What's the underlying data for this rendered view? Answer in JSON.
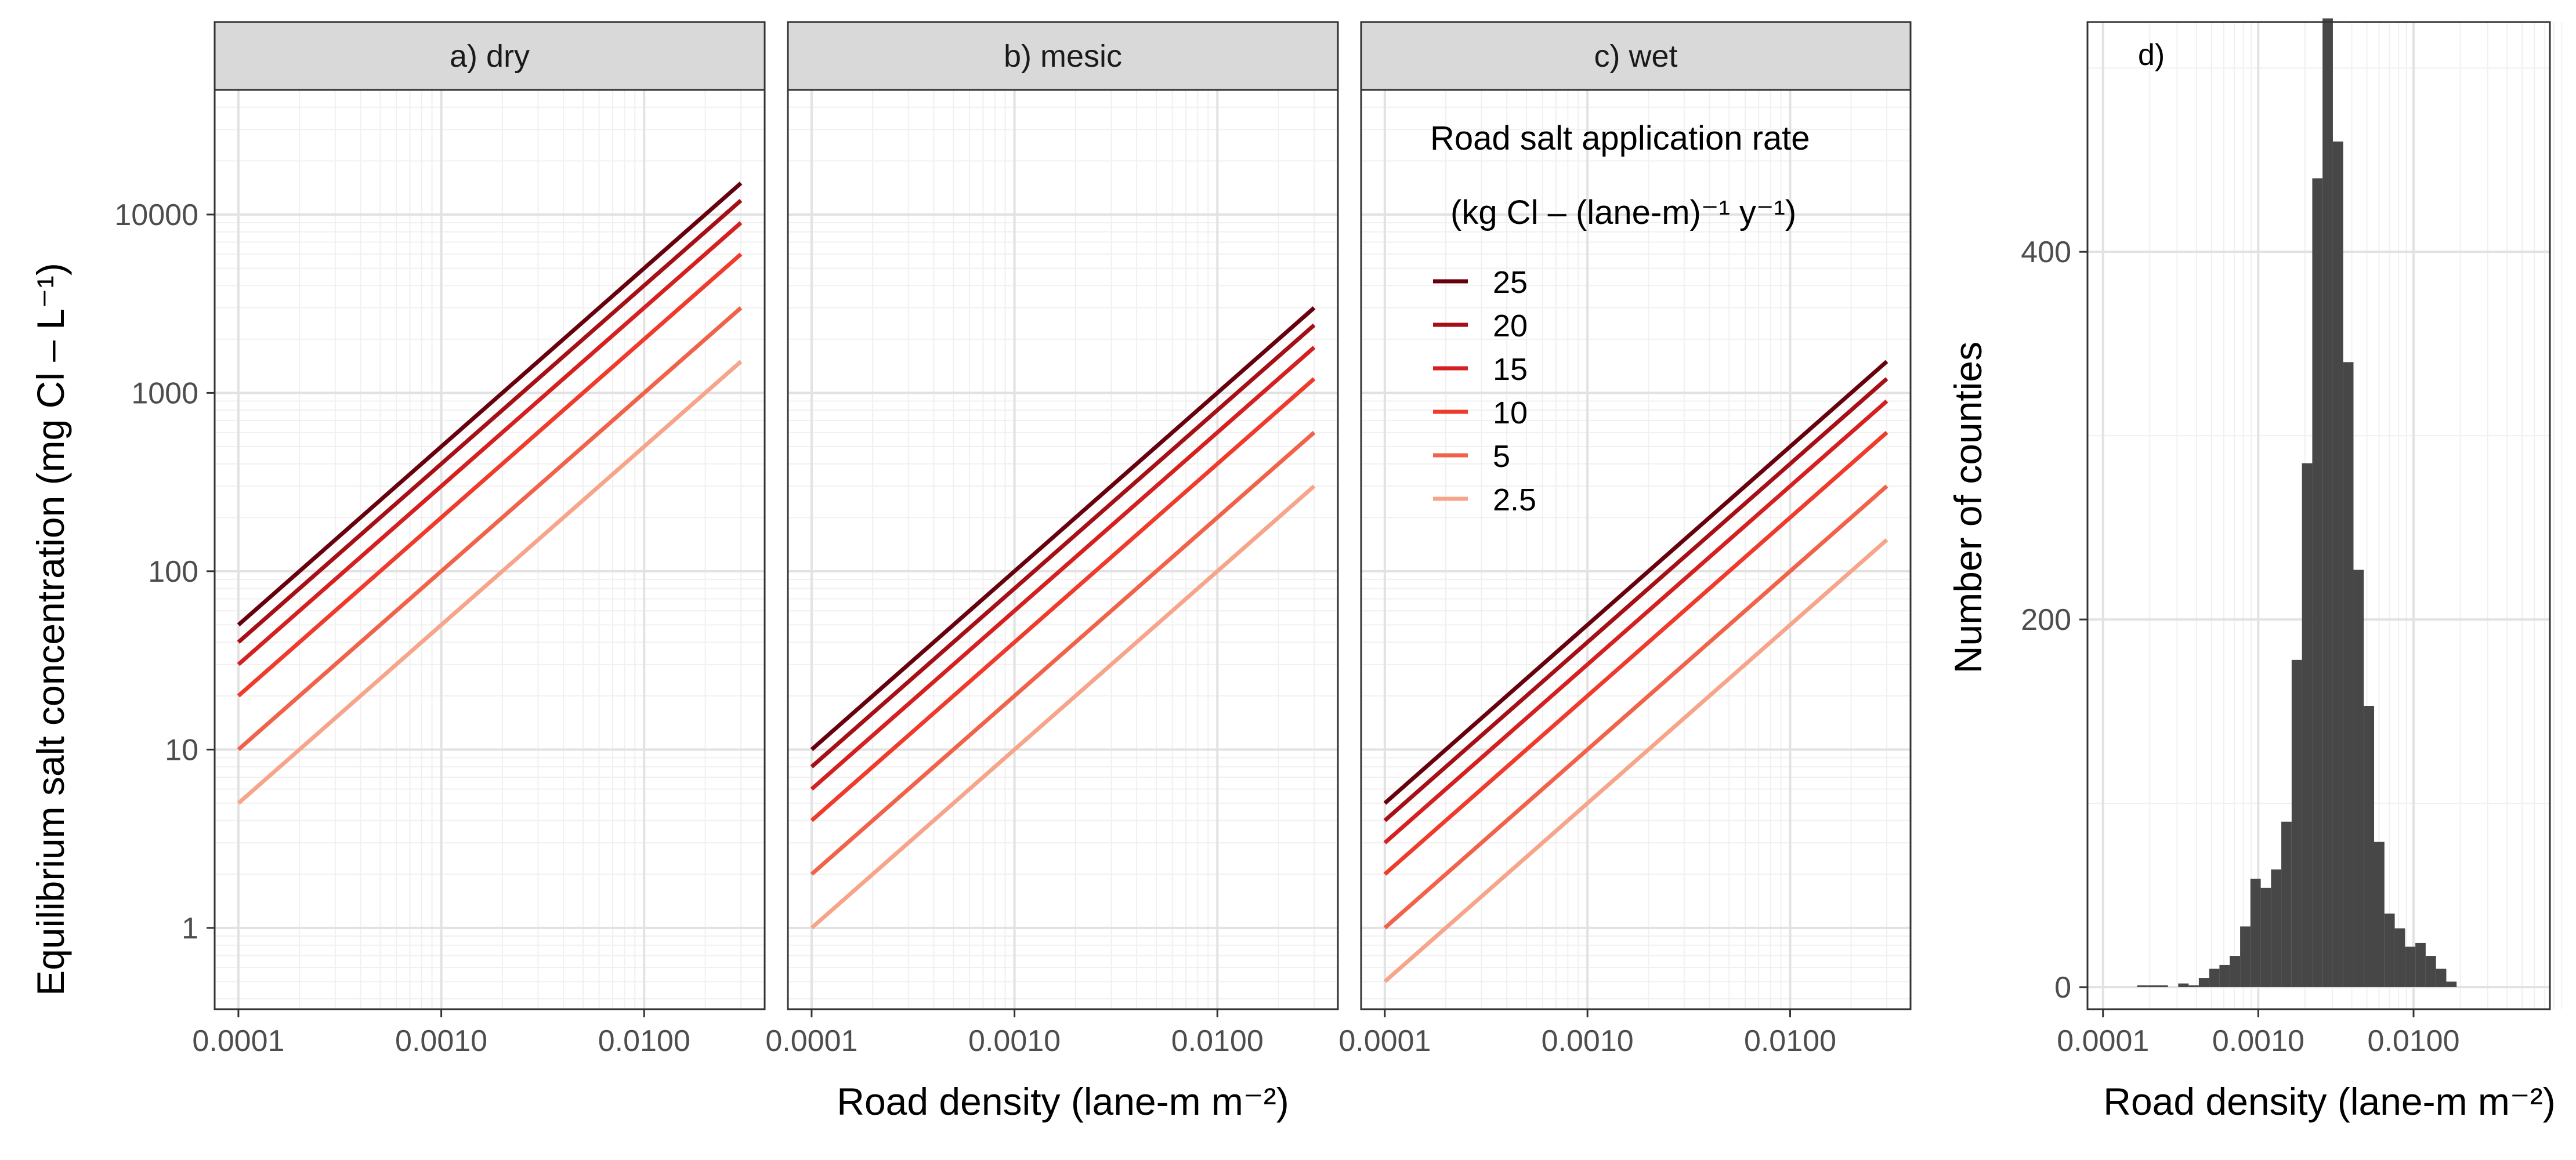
{
  "chart_data": [
    {
      "panel": "a",
      "type": "line",
      "strip_label": "a) dry",
      "xlabel": "",
      "ylabel": "Equilibrium salt concentration (mg Cl – L⁻¹)",
      "x_scale": "log10",
      "y_scale": "log10",
      "xlim": [
        0.0001,
        0.03
      ],
      "ylim": [
        0.35,
        50000
      ],
      "x_ticks": [
        0.0001,
        0.001,
        0.01
      ],
      "x_tick_labels": [
        "0.0001",
        "0.0010",
        "0.0100"
      ],
      "y_ticks": [
        1,
        10,
        100,
        1000,
        10000
      ],
      "y_tick_labels": [
        "1",
        "10",
        "100",
        "1000",
        "10000"
      ],
      "grid": true,
      "coefficient": 200000,
      "series": [
        {
          "name": "25",
          "color": "#67000d",
          "x": [
            0.0001,
            0.03
          ],
          "y": [
            50,
            15000
          ]
        },
        {
          "name": "20",
          "color": "#a50f15",
          "x": [
            0.0001,
            0.03
          ],
          "y": [
            40,
            12000
          ]
        },
        {
          "name": "15",
          "color": "#d42020",
          "x": [
            0.0001,
            0.03
          ],
          "y": [
            30,
            9000
          ]
        },
        {
          "name": "10",
          "color": "#ef3b2c",
          "x": [
            0.0001,
            0.03
          ],
          "y": [
            20,
            6000
          ]
        },
        {
          "name": "5",
          "color": "#f0634a",
          "x": [
            0.0001,
            0.03
          ],
          "y": [
            10,
            3000
          ]
        },
        {
          "name": "2.5",
          "color": "#f6a58a",
          "x": [
            0.0001,
            0.03
          ],
          "y": [
            5,
            1500
          ]
        }
      ]
    },
    {
      "panel": "b",
      "type": "line",
      "strip_label": "b) mesic",
      "xlabel": "Road density (lane-m m⁻²)",
      "x_scale": "log10",
      "y_scale": "log10",
      "xlim": [
        0.0001,
        0.03
      ],
      "ylim": [
        0.35,
        50000
      ],
      "x_ticks": [
        0.0001,
        0.001,
        0.01
      ],
      "x_tick_labels": [
        "0.0001",
        "0.0010",
        "0.0100"
      ],
      "grid": true,
      "coefficient": 40000,
      "series": [
        {
          "name": "25",
          "color": "#67000d",
          "x": [
            0.0001,
            0.03
          ],
          "y": [
            10,
            3000
          ]
        },
        {
          "name": "20",
          "color": "#a50f15",
          "x": [
            0.0001,
            0.03
          ],
          "y": [
            8,
            2400
          ]
        },
        {
          "name": "15",
          "color": "#d42020",
          "x": [
            0.0001,
            0.03
          ],
          "y": [
            6,
            1800
          ]
        },
        {
          "name": "10",
          "color": "#ef3b2c",
          "x": [
            0.0001,
            0.03
          ],
          "y": [
            4,
            1200
          ]
        },
        {
          "name": "5",
          "color": "#f0634a",
          "x": [
            0.0001,
            0.03
          ],
          "y": [
            2,
            600
          ]
        },
        {
          "name": "2.5",
          "color": "#f6a58a",
          "x": [
            0.0001,
            0.03
          ],
          "y": [
            1,
            300
          ]
        }
      ]
    },
    {
      "panel": "c",
      "type": "line",
      "strip_label": "c) wet",
      "xlabel": "",
      "x_scale": "log10",
      "y_scale": "log10",
      "xlim": [
        0.0001,
        0.03
      ],
      "ylim": [
        0.35,
        50000
      ],
      "x_ticks": [
        0.0001,
        0.001,
        0.01
      ],
      "x_tick_labels": [
        "0.0001",
        "0.0010",
        "0.0100"
      ],
      "grid": true,
      "coefficient": 20000,
      "legend_position": "top-right",
      "series": [
        {
          "name": "25",
          "color": "#67000d",
          "x": [
            0.0001,
            0.03
          ],
          "y": [
            5,
            1500
          ]
        },
        {
          "name": "20",
          "color": "#a50f15",
          "x": [
            0.0001,
            0.03
          ],
          "y": [
            4,
            1200
          ]
        },
        {
          "name": "15",
          "color": "#d42020",
          "x": [
            0.0001,
            0.03
          ],
          "y": [
            3,
            900
          ]
        },
        {
          "name": "10",
          "color": "#ef3b2c",
          "x": [
            0.0001,
            0.03
          ],
          "y": [
            2,
            600
          ]
        },
        {
          "name": "5",
          "color": "#f0634a",
          "x": [
            0.0001,
            0.03
          ],
          "y": [
            1,
            300
          ]
        },
        {
          "name": "2.5",
          "color": "#f6a58a",
          "x": [
            0.0001,
            0.03
          ],
          "y": [
            0.5,
            150
          ]
        }
      ]
    },
    {
      "panel": "d",
      "type": "bar",
      "subtype": "histogram",
      "panel_label": "d)",
      "xlabel": "Road density (lane-m m⁻²)",
      "ylabel": "Number of counties",
      "x_scale": "log10",
      "xlim": [
        0.0001,
        0.06
      ],
      "ylim": [
        -12,
        525
      ],
      "x_ticks": [
        0.0001,
        0.001,
        0.01
      ],
      "x_tick_labels": [
        "0.0001",
        "0.0010",
        "0.0100"
      ],
      "y_ticks": [
        0,
        200,
        400
      ],
      "y_tick_labels": [
        "0",
        "200",
        "400"
      ],
      "grid": true,
      "bar_color": "#474747",
      "bins": [
        {
          "x0": 0.000166,
          "x1": 0.000193,
          "count": 1
        },
        {
          "x0": 0.000193,
          "x1": 0.000225,
          "count": 1
        },
        {
          "x0": 0.000225,
          "x1": 0.000262,
          "count": 1
        },
        {
          "x0": 0.000305,
          "x1": 0.000356,
          "count": 2
        },
        {
          "x0": 0.000356,
          "x1": 0.000414,
          "count": 1
        },
        {
          "x0": 0.000414,
          "x1": 0.000483,
          "count": 5
        },
        {
          "x0": 0.000483,
          "x1": 0.000562,
          "count": 10
        },
        {
          "x0": 0.000562,
          "x1": 0.000655,
          "count": 12
        },
        {
          "x0": 0.000655,
          "x1": 0.000764,
          "count": 17
        },
        {
          "x0": 0.000764,
          "x1": 0.00089,
          "count": 33
        },
        {
          "x0": 0.00089,
          "x1": 0.001037,
          "count": 59
        },
        {
          "x0": 0.001037,
          "x1": 0.001208,
          "count": 54
        },
        {
          "x0": 0.001208,
          "x1": 0.001407,
          "count": 64
        },
        {
          "x0": 0.001407,
          "x1": 0.00164,
          "count": 90
        },
        {
          "x0": 0.00164,
          "x1": 0.001911,
          "count": 178
        },
        {
          "x0": 0.001911,
          "x1": 0.002227,
          "count": 285
        },
        {
          "x0": 0.002227,
          "x1": 0.002594,
          "count": 440
        },
        {
          "x0": 0.002594,
          "x1": 0.003023,
          "count": 527
        },
        {
          "x0": 0.003023,
          "x1": 0.003522,
          "count": 460
        },
        {
          "x0": 0.003522,
          "x1": 0.004104,
          "count": 340
        },
        {
          "x0": 0.004104,
          "x1": 0.004782,
          "count": 227
        },
        {
          "x0": 0.004782,
          "x1": 0.005572,
          "count": 153
        },
        {
          "x0": 0.005572,
          "x1": 0.006493,
          "count": 79
        },
        {
          "x0": 0.006493,
          "x1": 0.007566,
          "count": 40
        },
        {
          "x0": 0.007566,
          "x1": 0.008816,
          "count": 32
        },
        {
          "x0": 0.008816,
          "x1": 0.010273,
          "count": 22
        },
        {
          "x0": 0.010273,
          "x1": 0.01197,
          "count": 24
        },
        {
          "x0": 0.01197,
          "x1": 0.013948,
          "count": 17
        },
        {
          "x0": 0.013948,
          "x1": 0.016252,
          "count": 10
        },
        {
          "x0": 0.016252,
          "x1": 0.018937,
          "count": 3
        }
      ]
    }
  ],
  "legend": {
    "title_line1": "Road salt application rate",
    "title_line2": "(kg Cl –  (lane-m)⁻¹ y⁻¹)",
    "position": "top-right"
  }
}
